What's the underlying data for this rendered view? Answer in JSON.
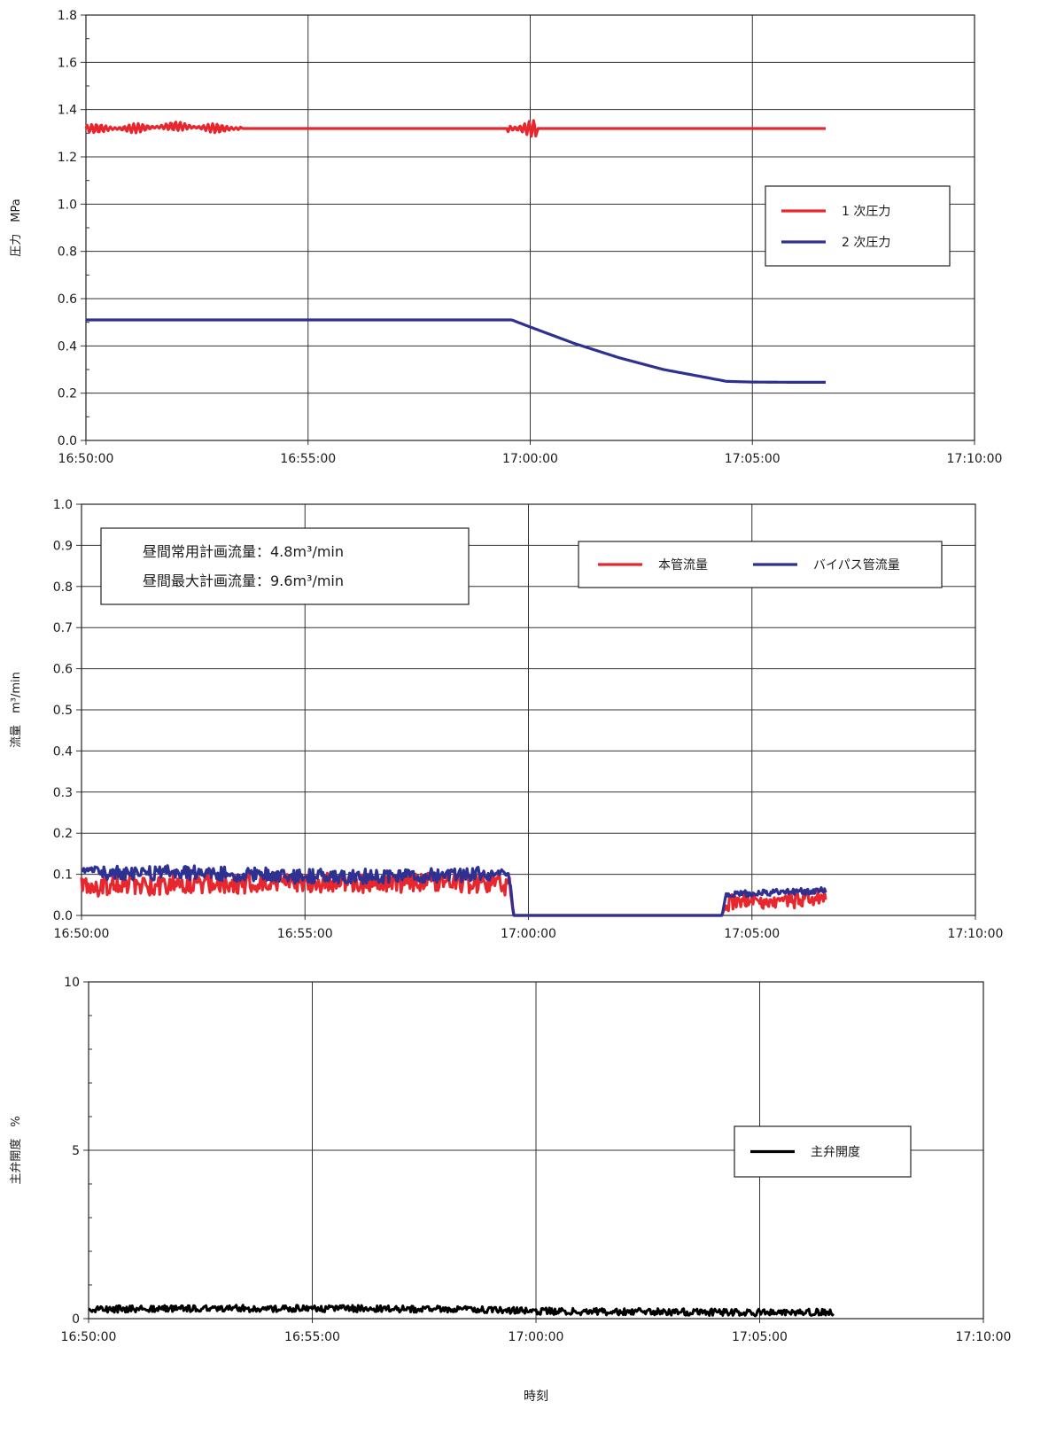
{
  "chart_data": [
    {
      "type": "line",
      "ylabel": "圧力　MPa",
      "ylim": [
        0,
        1.8
      ],
      "yticks": [
        "0.0",
        "0.2",
        "0.4",
        "0.6",
        "0.8",
        "1.0",
        "1.2",
        "1.4",
        "1.6",
        "1.8"
      ],
      "xlim_minutes": [
        0,
        20
      ],
      "xticks": [
        "16:50:00",
        "16:55:00",
        "17:00:00",
        "17:05:00",
        "17:10:00"
      ],
      "grid": true,
      "legend_position": "right",
      "series": [
        {
          "name": "1 次圧力",
          "color": "#e8262d",
          "x": [
            "16:50:00",
            "16:51:00",
            "16:52:00",
            "16:53:00",
            "16:54:00",
            "16:55:00",
            "16:56:00",
            "16:57:00",
            "16:58:00",
            "16:59:00",
            "16:59:30",
            "17:00:00",
            "17:01:00",
            "17:02:00",
            "17:03:00",
            "17:04:00",
            "17:05:00",
            "17:06:00",
            "17:06:40"
          ],
          "y": [
            1.32,
            1.32,
            1.33,
            1.32,
            1.32,
            1.32,
            1.32,
            1.32,
            1.32,
            1.32,
            1.32,
            1.32,
            1.32,
            1.32,
            1.32,
            1.32,
            1.32,
            1.32,
            1.32
          ],
          "oscillation": [
            {
              "from": "16:50:00",
              "to": "16:53:30",
              "amplitude": 0.02
            },
            {
              "from": "16:59:30",
              "to": "17:00:10",
              "amplitude": 0.035
            }
          ]
        },
        {
          "name": "2 次圧力",
          "color": "#2e3192",
          "x": [
            "16:50:00",
            "16:55:00",
            "16:59:00",
            "16:59:35",
            "17:00:00",
            "17:01:00",
            "17:02:00",
            "17:03:00",
            "17:04:00",
            "17:04:25",
            "17:05:00",
            "17:06:00",
            "17:06:40"
          ],
          "y": [
            0.51,
            0.51,
            0.51,
            0.51,
            0.48,
            0.41,
            0.35,
            0.3,
            0.265,
            0.25,
            0.247,
            0.246,
            0.246
          ],
          "oscillation": []
        }
      ]
    },
    {
      "type": "line",
      "ylabel": "流量　m³/min",
      "ylim": [
        0,
        1.0
      ],
      "yticks": [
        "0.0",
        "0.1",
        "0.2",
        "0.3",
        "0.4",
        "0.5",
        "0.6",
        "0.7",
        "0.8",
        "0.9",
        "1.0"
      ],
      "xlim_minutes": [
        0,
        20
      ],
      "xticks": [
        "16:50:00",
        "16:55:00",
        "17:00:00",
        "17:05:00",
        "17:10:00"
      ],
      "grid": true,
      "legend_position": "top-right",
      "annotations": [
        "昼間常用計画流量：4.8m³/min",
        "昼間最大計画流量：9.6m³/min"
      ],
      "series": [
        {
          "name": "本管流量",
          "color": "#e8262d",
          "x": [
            "16:50:00",
            "16:52:00",
            "16:55:00",
            "16:57:00",
            "16:59:00",
            "16:59:35",
            "16:59:40",
            "17:00:00",
            "17:04:20",
            "17:04:25",
            "17:05:00",
            "17:06:40"
          ],
          "y": [
            0.07,
            0.075,
            0.08,
            0.08,
            0.08,
            0.07,
            0.0,
            0.0,
            0.0,
            0.03,
            0.035,
            0.04
          ],
          "oscillation": [
            {
              "from": "16:50:00",
              "to": "16:59:35",
              "amplitude": 0.025
            },
            {
              "from": "17:04:25",
              "to": "17:06:40",
              "amplitude": 0.02
            }
          ]
        },
        {
          "name": "バイパス管流量",
          "color": "#2e3192",
          "x": [
            "16:50:00",
            "16:52:00",
            "16:55:00",
            "16:57:00",
            "16:59:00",
            "16:59:35",
            "16:59:40",
            "17:00:00",
            "17:04:20",
            "17:04:25",
            "17:05:00",
            "17:06:40"
          ],
          "y": [
            0.1,
            0.105,
            0.095,
            0.095,
            0.1,
            0.09,
            0.0,
            0.0,
            0.0,
            0.05,
            0.055,
            0.06
          ],
          "oscillation": [
            {
              "from": "16:50:00",
              "to": "16:59:35",
              "amplitude": 0.018
            },
            {
              "from": "17:04:25",
              "to": "17:06:40",
              "amplitude": 0.008
            }
          ]
        }
      ]
    },
    {
      "type": "line",
      "ylabel": "主弁開度　%",
      "ylim": [
        0,
        10
      ],
      "yticks": [
        "0",
        "5",
        "10"
      ],
      "yminor_step": 1,
      "xlim_minutes": [
        0,
        20
      ],
      "xticks": [
        "16:50:00",
        "16:55:00",
        "17:00:00",
        "17:05:00",
        "17:10:00"
      ],
      "xlabel": "時刻",
      "grid": true,
      "legend_position": "right",
      "series": [
        {
          "name": "主弁開度",
          "color": "#000000",
          "x": [
            "16:50:00",
            "16:52:00",
            "16:55:00",
            "16:58:00",
            "17:00:00",
            "17:03:00",
            "17:05:00",
            "17:06:40"
          ],
          "y": [
            0.28,
            0.3,
            0.3,
            0.28,
            0.22,
            0.2,
            0.18,
            0.2
          ],
          "oscillation": [
            {
              "from": "16:50:00",
              "to": "17:06:40",
              "amplitude": 0.1
            }
          ]
        }
      ]
    }
  ]
}
